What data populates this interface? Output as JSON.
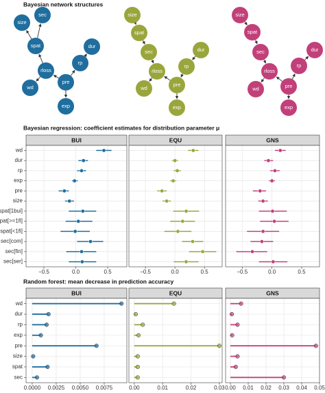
{
  "networks": {
    "title": "Bayesian network structures",
    "graphs": [
      {
        "color": "#1f6e9e",
        "nodes": [
          "size",
          "spat",
          "sec",
          "dur",
          "rp",
          "rloss",
          "pre",
          "wd",
          "exp"
        ],
        "edges": [
          [
            1,
            0
          ],
          [
            1,
            2
          ],
          [
            5,
            1
          ],
          [
            4,
            3
          ],
          [
            6,
            4
          ],
          [
            6,
            5
          ],
          [
            5,
            7
          ],
          [
            6,
            8
          ]
        ]
      },
      {
        "color": "#9aa63c",
        "nodes": [
          "size",
          "spat",
          "sec",
          "dur",
          "rp",
          "rloss",
          "pre",
          "wd",
          "exp"
        ],
        "edges": [
          [
            0,
            1
          ],
          [
            1,
            2
          ],
          [
            2,
            5
          ],
          [
            3,
            4
          ],
          [
            4,
            6
          ],
          [
            6,
            5
          ],
          [
            5,
            7
          ],
          [
            6,
            8
          ]
        ]
      },
      {
        "color": "#c2407a",
        "nodes": [
          "size",
          "spat",
          "sec",
          "dur",
          "rp",
          "rloss",
          "pre",
          "wd",
          "exp"
        ],
        "edges": [
          [
            0,
            1
          ],
          [
            1,
            2
          ],
          [
            2,
            5
          ],
          [
            4,
            3
          ],
          [
            6,
            4
          ],
          [
            6,
            5
          ],
          [
            5,
            7
          ],
          [
            6,
            8
          ]
        ]
      }
    ]
  },
  "chart_data": [
    {
      "type": "forest",
      "title": "Bayesian regression: coefficient estimates for distribution parameter μ",
      "categories": [
        "wd",
        "dur",
        "rp",
        "exp",
        "pre",
        "size",
        "spat[1bui]",
        "spat[>=1fl]",
        "spat[<1fl]",
        "sec[com]",
        "sec[fin]",
        "sec[ser]"
      ],
      "xlim": [
        -0.78,
        0.8
      ],
      "xticks": [
        {
          "value": -0.5,
          "label": "−0.5"
        },
        {
          "value": 0,
          "label": "0.0"
        },
        0.5
      ],
      "grid": true,
      "panels": [
        {
          "name": "BUI",
          "color": "#1f6e9e",
          "values": [
            0.44,
            0.12,
            0.09,
            -0.02,
            -0.18,
            -0.1,
            0.11,
            0.04,
            -0.01,
            0.23,
            0.09,
            0.1
          ],
          "lower": [
            0.32,
            0.04,
            0.02,
            -0.06,
            -0.27,
            -0.17,
            -0.11,
            -0.16,
            -0.24,
            0.02,
            -0.15,
            -0.11
          ],
          "upper": [
            0.56,
            0.19,
            0.16,
            0.03,
            -0.11,
            -0.03,
            0.32,
            0.26,
            0.22,
            0.43,
            0.32,
            0.32
          ]
        },
        {
          "name": "EQU",
          "color": "#9aa63c",
          "values": [
            0.31,
            0,
            0.04,
            -0.03,
            -0.22,
            -0.14,
            0.19,
            0.13,
            0.05,
            0.3,
            0.47,
            0.19
          ],
          "lower": [
            0.22,
            -0.05,
            -0.02,
            -0.08,
            -0.3,
            -0.21,
            -0.03,
            -0.08,
            -0.18,
            0.12,
            0.24,
            -0.02
          ],
          "upper": [
            0.4,
            0.05,
            0.1,
            0.02,
            -0.14,
            -0.07,
            0.41,
            0.34,
            0.28,
            0.48,
            0.7,
            0.4
          ]
        },
        {
          "name": "GNS",
          "color": "#c2407a",
          "values": [
            0.14,
            -0.06,
            0.05,
            0,
            -0.2,
            -0.15,
            0.01,
            0.04,
            -0.15,
            -0.17,
            -0.33,
            0.02
          ],
          "lower": [
            0.05,
            -0.13,
            -0.03,
            -0.05,
            -0.32,
            -0.23,
            -0.22,
            -0.2,
            -0.42,
            -0.36,
            -0.6,
            -0.22
          ],
          "upper": [
            0.23,
            0.02,
            0.13,
            0.05,
            -0.1,
            -0.07,
            0.25,
            0.28,
            0.12,
            0.02,
            -0.08,
            0.26
          ]
        }
      ]
    },
    {
      "type": "lollipop",
      "title": "Random forest: mean decrease in prediction accuracy",
      "categories": [
        "wd",
        "dur",
        "rp",
        "exp",
        "pre",
        "size",
        "spat",
        "sec"
      ],
      "grid": true,
      "panels": [
        {
          "name": "BUI",
          "color": "#1f6e9e",
          "xlim": [
            -0.00064,
            0.00986
          ],
          "xticks": [
            {
              "value": 0,
              "label": "0.0000"
            },
            {
              "value": 0.0025,
              "label": "0.0025"
            },
            {
              "value": 0.005,
              "label": "0.0050"
            },
            {
              "value": 0.0075,
              "label": "0.0075"
            }
          ],
          "values": [
            0.0093,
            0.0017,
            0.0015,
            0.0009,
            0.0067,
            0.0001,
            0.0016,
            0.0005
          ]
        },
        {
          "name": "EQU",
          "color": "#9aa63c",
          "xlim": [
            -0.0019,
            0.031
          ],
          "xticks": [
            {
              "value": 0,
              "label": "0.00"
            },
            0.01,
            0.02,
            0.03
          ],
          "values": [
            0.014,
            0.0005,
            0.003,
            0.0015,
            0.03,
            0.0012,
            0.0012,
            0.0012
          ]
        },
        {
          "name": "GNS",
          "color": "#c2407a",
          "xlim": [
            -0.0027,
            0.05
          ],
          "xticks": [
            {
              "value": 0,
              "label": "0.00"
            },
            0.01,
            0.02,
            0.03,
            0.04,
            0.05
          ],
          "values": [
            0.006,
            0.0008,
            0.004,
            0.001,
            0.048,
            0.004,
            0.003,
            0.03
          ]
        }
      ]
    }
  ]
}
